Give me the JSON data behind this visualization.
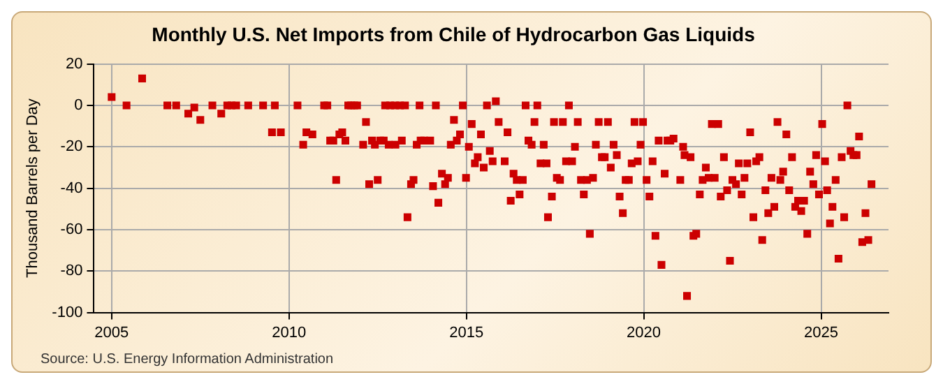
{
  "chart_data": {
    "type": "scatter",
    "title": "Monthly U.S. Net Imports from Chile of Hydrocarbon Gas Liquids",
    "ylabel": "Thousand Barrels per Day",
    "annotations": [
      "Source: U.S. Energy Information Administration"
    ],
    "x": [
      2005.0,
      2005.42,
      2005.86,
      2006.57,
      2006.82,
      2007.16,
      2007.33,
      2007.5,
      2007.84,
      2008.09,
      2008.26,
      2008.38,
      2008.51,
      2008.85,
      2009.27,
      2009.52,
      2009.6,
      2009.77,
      2010.24,
      2010.4,
      2010.49,
      2010.66,
      2010.99,
      2011.08,
      2011.16,
      2011.25,
      2011.33,
      2011.42,
      2011.5,
      2011.59,
      2011.67,
      2011.75,
      2011.84,
      2011.92,
      2012.09,
      2012.17,
      2012.26,
      2012.34,
      2012.42,
      2012.5,
      2012.57,
      2012.67,
      2012.71,
      2012.81,
      2012.85,
      2012.99,
      2013.0,
      2013.13,
      2013.18,
      2013.27,
      2013.34,
      2013.44,
      2013.51,
      2013.6,
      2013.68,
      2013.71,
      2013.81,
      2013.98,
      2014.06,
      2014.14,
      2014.21,
      2014.31,
      2014.4,
      2014.48,
      2014.56,
      2014.65,
      2014.73,
      2014.82,
      2014.9,
      2014.99,
      2015.07,
      2015.15,
      2015.24,
      2015.32,
      2015.41,
      2015.49,
      2015.58,
      2015.66,
      2015.74,
      2015.83,
      2015.91,
      2016.08,
      2016.16,
      2016.25,
      2016.33,
      2016.42,
      2016.5,
      2016.59,
      2016.67,
      2016.75,
      2016.84,
      2016.92,
      2017.0,
      2017.09,
      2017.18,
      2017.26,
      2017.3,
      2017.41,
      2017.47,
      2017.55,
      2017.64,
      2017.72,
      2017.81,
      2017.89,
      2017.98,
      2018.06,
      2018.14,
      2018.23,
      2018.31,
      2018.4,
      2018.48,
      2018.57,
      2018.65,
      2018.73,
      2018.82,
      2018.9,
      2018.99,
      2019.07,
      2019.15,
      2019.24,
      2019.32,
      2019.41,
      2019.49,
      2019.58,
      2019.66,
      2019.74,
      2019.83,
      2019.91,
      2019.98,
      2020.08,
      2020.16,
      2020.25,
      2020.33,
      2020.42,
      2020.5,
      2020.59,
      2020.67,
      2020.75,
      2020.84,
      2021.03,
      2021.11,
      2021.15,
      2021.22,
      2021.32,
      2021.4,
      2021.48,
      2021.58,
      2021.66,
      2021.75,
      2021.83,
      2021.92,
      2022.0,
      2022.1,
      2022.17,
      2022.26,
      2022.35,
      2022.43,
      2022.5,
      2022.6,
      2022.68,
      2022.76,
      2022.84,
      2022.92,
      2023.0,
      2023.09,
      2023.17,
      2023.26,
      2023.34,
      2023.43,
      2023.51,
      2023.6,
      2023.68,
      2023.77,
      2023.85,
      2023.93,
      2024.02,
      2024.1,
      2024.18,
      2024.27,
      2024.35,
      2024.44,
      2024.52,
      2024.61,
      2024.69,
      2024.78,
      2024.86,
      2024.94,
      2025.03,
      2025.11,
      2025.17,
      2025.25,
      2025.32,
      2025.41,
      2025.49,
      2025.58,
      2025.65,
      2025.74,
      2025.83,
      2025.91,
      2026.0,
      2026.07,
      2026.16,
      2026.25,
      2026.33,
      2026.42
    ],
    "series": [
      {
        "color": "#cc0000",
        "values": [
          4,
          0,
          13,
          0,
          0,
          -4,
          -1,
          -7,
          0,
          -4,
          0,
          0,
          0,
          0,
          0,
          -13,
          0,
          -13,
          0,
          -19,
          -13,
          -14,
          0,
          0,
          -17,
          -17,
          -36,
          -14,
          -13,
          -17,
          0,
          0,
          0,
          0,
          -19,
          -8,
          -38,
          -17,
          -19,
          -36,
          -17,
          -17,
          0,
          -19,
          0,
          0,
          -19,
          0,
          -17,
          0,
          -54,
          -38,
          -36,
          -19,
          0,
          -17,
          -17,
          -17,
          -39,
          0,
          -47,
          -33,
          -38,
          -35,
          -19,
          -7,
          -17,
          -14,
          0,
          -35,
          -20,
          -9,
          -28,
          -25,
          -14,
          -30,
          0,
          -22,
          -27,
          2,
          -8,
          -27,
          -13,
          -46,
          -33,
          -36,
          -43,
          -36,
          0,
          -17,
          -19,
          -8,
          0,
          -28,
          -19,
          -28,
          -54,
          -44,
          -8,
          -35,
          -36,
          -8,
          -27,
          0,
          -27,
          -20,
          -8,
          -36,
          -43,
          -36,
          -62,
          -35,
          -19,
          -8,
          -25,
          -25,
          -8,
          -30,
          -19,
          -24,
          -44,
          -52,
          -36,
          -36,
          -28,
          -8,
          -27,
          -19,
          -8,
          -36,
          -44,
          -27,
          -63,
          -17,
          -77,
          -33,
          -17,
          -17,
          -16,
          -36,
          -20,
          -24,
          -92,
          -25,
          -63,
          -62,
          -43,
          -36,
          -30,
          -35,
          -9,
          -35,
          -9,
          -44,
          -25,
          -41,
          -75,
          -36,
          -38,
          -28,
          -43,
          -35,
          -28,
          -13,
          -54,
          -27,
          -25,
          -65,
          -41,
          -52,
          -35,
          -49,
          -8,
          -36,
          -32,
          -14,
          -41,
          -25,
          -49,
          -46,
          -51,
          -46,
          -62,
          -32,
          -38,
          -24,
          -43,
          -9,
          -27,
          -41,
          -57,
          -49,
          -36,
          -74,
          -25,
          -54,
          0,
          -22,
          -24,
          -24,
          -15,
          -66,
          -52,
          -65,
          -38
        ]
      }
    ],
    "xlim": [
      2004.5,
      2026.9
    ],
    "xticks": [
      2005,
      2010,
      2015,
      2020,
      2025
    ],
    "ylim": [
      -100,
      20
    ],
    "yticks": [
      -100,
      -80,
      -60,
      -40,
      -20,
      0,
      20
    ],
    "grid": true,
    "legend": false,
    "marker": "square"
  }
}
